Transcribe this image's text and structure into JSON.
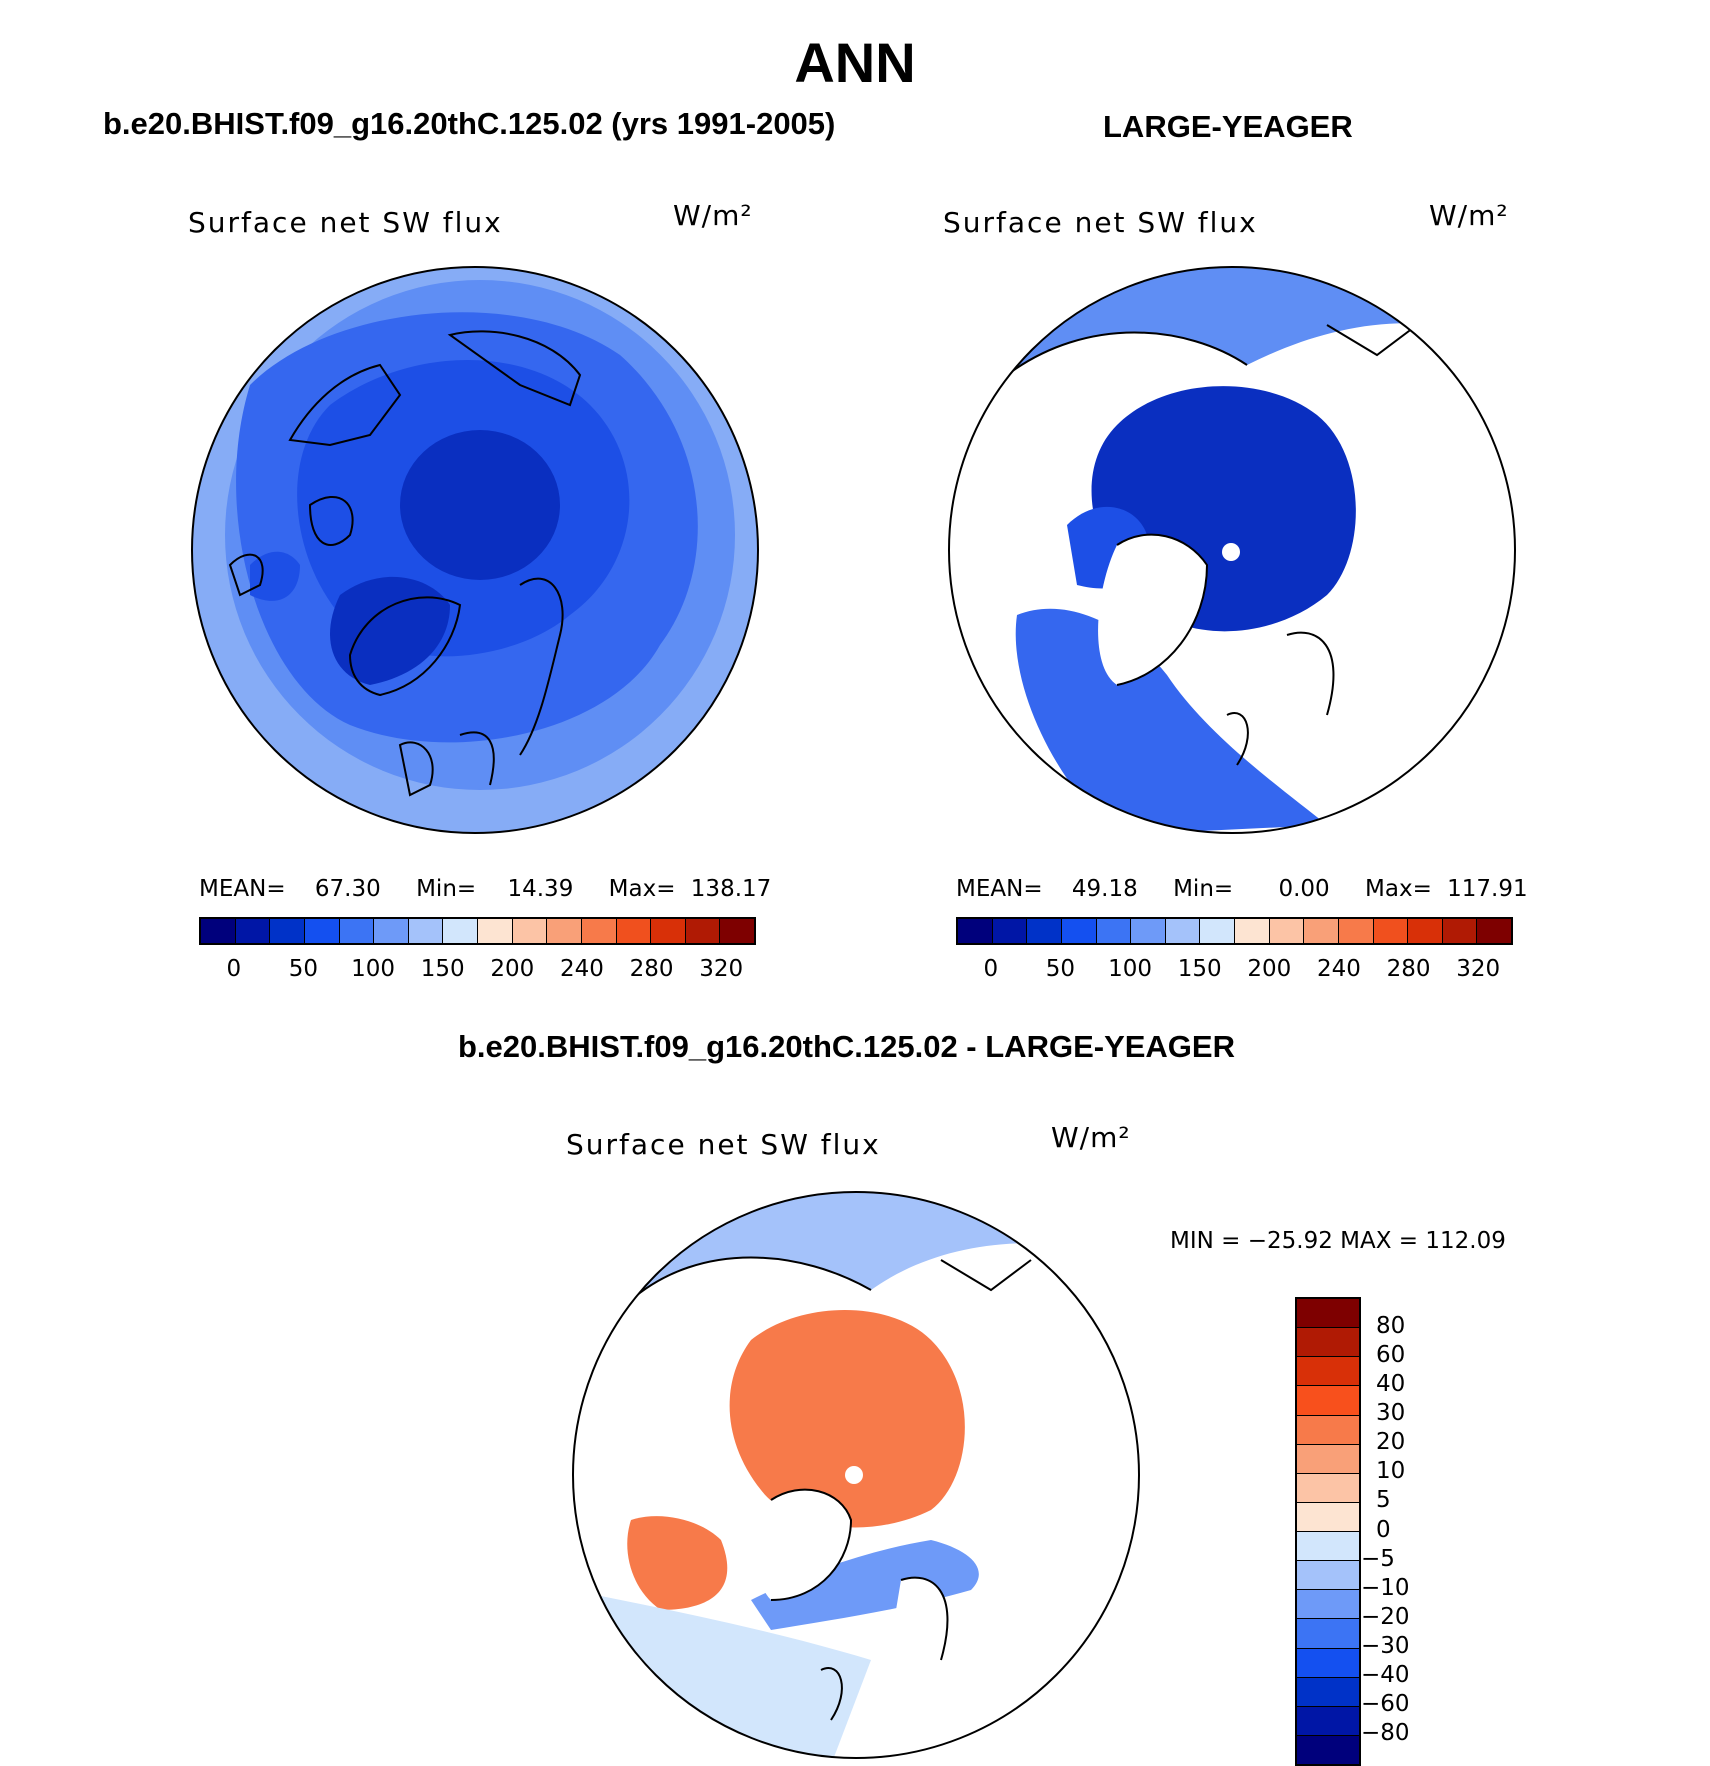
{
  "title": "ANN",
  "panels": [
    {
      "case_title": "b.e20.BHIST.f09_g16.20thC.125.02 (yrs 1991-2005)",
      "variable": "Surface net SW flux",
      "units": "W/m²",
      "stats": {
        "mean_label": "MEAN=",
        "mean": "67.30",
        "min_label": "Min=",
        "min": "14.39",
        "max_label": "Max=",
        "max": "138.17"
      }
    },
    {
      "case_title": "LARGE-YEAGER",
      "variable": "Surface net SW flux",
      "units": "W/m²",
      "stats": {
        "mean_label": "MEAN=",
        "mean": "49.18",
        "min_label": "Min=",
        "min": "0.00",
        "max_label": "Max=",
        "max": "117.91"
      }
    },
    {
      "case_title": "b.e20.BHIST.f09_g16.20thC.125.02 - LARGE-YEAGER",
      "variable": "Surface net SW flux",
      "units": "W/m²",
      "range_text": "MIN = −25.92 MAX = 112.09"
    }
  ],
  "colorbar_abs": {
    "colors": [
      "#00007c",
      "#0016a6",
      "#0032c8",
      "#1450f0",
      "#3c74f4",
      "#6e9af8",
      "#a4c2fa",
      "#d2e6fc",
      "#fde4d2",
      "#fcc4a6",
      "#f9a078",
      "#f77a4a",
      "#f0501e",
      "#d83008",
      "#b01a04",
      "#7e0000"
    ],
    "tick_labels": [
      "0",
      "50",
      "100",
      "150",
      "200",
      "240",
      "280",
      "320"
    ]
  },
  "colorbar_diff": {
    "colors": [
      "#7e0000",
      "#b01a04",
      "#d83008",
      "#f8501c",
      "#f77a4a",
      "#f9a078",
      "#fcc4a6",
      "#fde4d2",
      "#d2e6fc",
      "#a4c2fa",
      "#6e9af8",
      "#3c74f4",
      "#1450f0",
      "#0032c8",
      "#0016a6",
      "#00007c"
    ],
    "tick_labels": [
      "80",
      "60",
      "40",
      "30",
      "20",
      "10",
      "5",
      "0",
      "−5",
      "−10",
      "−20",
      "−30",
      "−40",
      "−60",
      "−80"
    ]
  },
  "map_colors": {
    "dark": "#0a2fc0",
    "mid": "#1d4fe6",
    "base": "#3567ef",
    "light": "#5f8ef4",
    "pale": "#86acf6",
    "diff_orange": "#f77a4a",
    "diff_light_orange": "#fcc4a6",
    "diff_pale": "#fde4d2",
    "diff_pale_blue": "#d2e6fc",
    "diff_light_blue": "#a4c2fa",
    "diff_blue": "#6e9af8"
  }
}
